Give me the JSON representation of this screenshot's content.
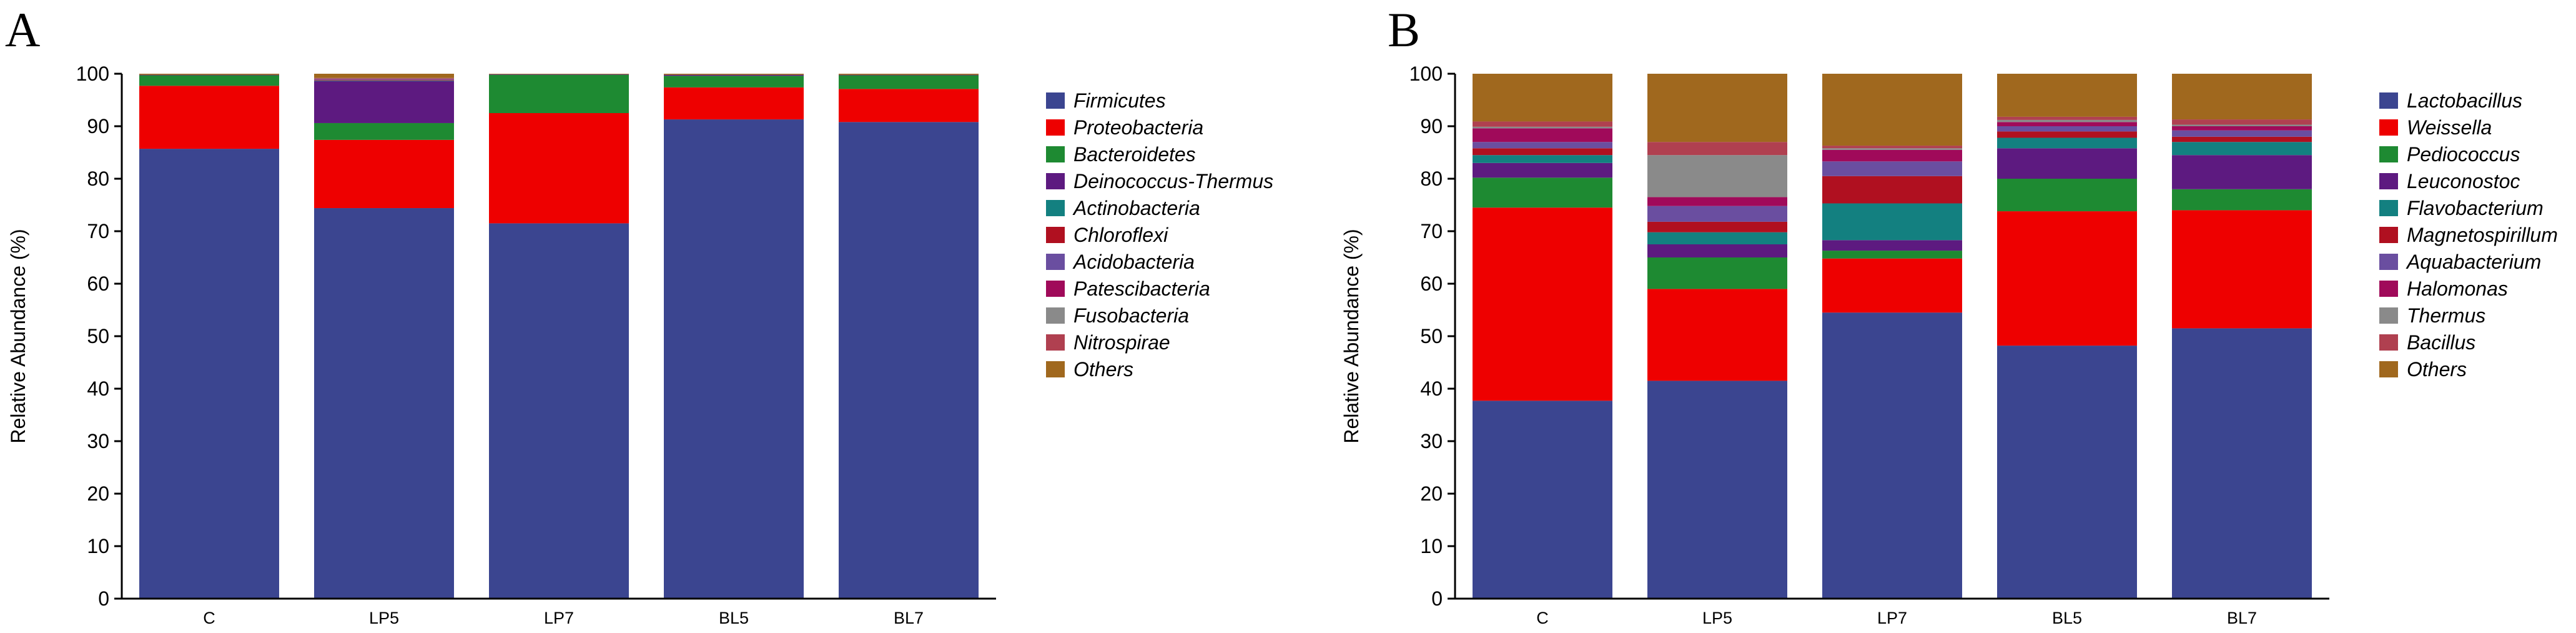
{
  "chart_data": [
    {
      "type": "bar",
      "stacked": true,
      "panel_label": "A",
      "ylabel": "Relative Abundance (%)",
      "ylim": [
        0,
        100
      ],
      "yticks": [
        0,
        10,
        20,
        30,
        40,
        50,
        60,
        70,
        80,
        90,
        100
      ],
      "categories": [
        "C",
        "LP5",
        "LP7",
        "BL5",
        "BL7"
      ],
      "series": [
        {
          "name": "Firmicutes",
          "color": "#3b4590",
          "values": [
            85.7,
            74.4,
            71.5,
            91.3,
            90.8
          ]
        },
        {
          "name": "Proteobacteria",
          "color": "#ee0000",
          "values": [
            12.0,
            13.0,
            21.0,
            6.1,
            6.3
          ]
        },
        {
          "name": "Bacteroidetes",
          "color": "#1e8a32",
          "values": [
            2.0,
            3.2,
            7.3,
            2.2,
            2.6
          ]
        },
        {
          "name": "Deinococcus-Thermus",
          "color": "#5d1a80",
          "values": [
            0.1,
            8.0,
            0.1,
            0.2,
            0.1
          ]
        },
        {
          "name": "Actinobacteria",
          "color": "#138080",
          "values": [
            0.0,
            0.1,
            0.0,
            0.0,
            0.0
          ]
        },
        {
          "name": "Chloroflexi",
          "color": "#b01020",
          "values": [
            0.0,
            0.1,
            0.0,
            0.0,
            0.0
          ]
        },
        {
          "name": "Acidobacteria",
          "color": "#6a4ea0",
          "values": [
            0.0,
            0.1,
            0.0,
            0.0,
            0.0
          ]
        },
        {
          "name": "Patescibacteria",
          "color": "#a00a5a",
          "values": [
            0.0,
            0.1,
            0.0,
            0.0,
            0.0
          ]
        },
        {
          "name": "Fusobacteria",
          "color": "#8a8a8a",
          "values": [
            0.0,
            0.1,
            0.0,
            0.0,
            0.0
          ]
        },
        {
          "name": "Nitrospirae",
          "color": "#b04050",
          "values": [
            0.0,
            0.1,
            0.0,
            0.0,
            0.0
          ]
        },
        {
          "name": "Others",
          "color": "#a0681e",
          "values": [
            0.2,
            0.8,
            0.1,
            0.2,
            0.2
          ]
        }
      ]
    },
    {
      "type": "bar",
      "stacked": true,
      "panel_label": "B",
      "ylabel": "Relative Abundance (%)",
      "ylim": [
        0,
        100
      ],
      "yticks": [
        0,
        10,
        20,
        30,
        40,
        50,
        60,
        70,
        80,
        90,
        100
      ],
      "categories": [
        "C",
        "LP5",
        "LP7",
        "BL5",
        "BL7"
      ],
      "series": [
        {
          "name": "Lactobacillus",
          "color": "#3b4590",
          "values": [
            37.7,
            41.5,
            54.5,
            48.2,
            51.5
          ]
        },
        {
          "name": "Weissella",
          "color": "#ee0000",
          "values": [
            36.8,
            17.5,
            10.3,
            25.6,
            22.5
          ]
        },
        {
          "name": "Pediococcus",
          "color": "#1e8a32",
          "values": [
            5.7,
            6.0,
            1.5,
            6.2,
            4.0
          ]
        },
        {
          "name": "Leuconostoc",
          "color": "#5d1a80",
          "values": [
            2.8,
            2.5,
            2.0,
            5.8,
            6.5
          ]
        },
        {
          "name": "Flavobacterium",
          "color": "#138080",
          "values": [
            1.5,
            2.3,
            7.0,
            2.0,
            2.5
          ]
        },
        {
          "name": "Magnetospirillum",
          "color": "#b01020",
          "values": [
            1.3,
            2.0,
            5.2,
            1.2,
            1.0
          ]
        },
        {
          "name": "Aquabacterium",
          "color": "#6a4ea0",
          "values": [
            1.2,
            3.0,
            2.8,
            1.0,
            1.2
          ]
        },
        {
          "name": "Halomonas",
          "color": "#a00a5a",
          "values": [
            2.6,
            1.7,
            2.2,
            0.8,
            0.8
          ]
        },
        {
          "name": "Thermus",
          "color": "#8a8a8a",
          "values": [
            0.3,
            8.0,
            0.3,
            0.4,
            0.3
          ]
        },
        {
          "name": "Bacillus",
          "color": "#b04050",
          "values": [
            1.0,
            2.5,
            0.5,
            0.6,
            1.0
          ]
        },
        {
          "name": "Others",
          "color": "#a0681e",
          "values": [
            9.1,
            13.0,
            13.7,
            8.2,
            8.7
          ]
        }
      ]
    }
  ]
}
